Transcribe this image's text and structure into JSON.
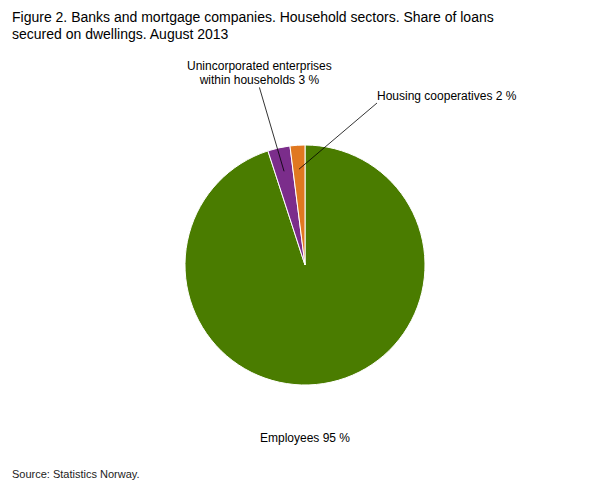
{
  "chart_data": {
    "type": "pie",
    "title": "Figure 2. Banks and mortgage companies. Household sectors. Share of loans\nsecured on dwellings. August 2013",
    "source": "Source: Statistics Norway.",
    "categories": [
      "Employees 95 %",
      "Unincorporated enterprises\nwithin households 3 %",
      "Housing cooperatives 2 %"
    ],
    "values": [
      95,
      3,
      2
    ],
    "colors": [
      "#4a7c00",
      "#7b2d8b",
      "#e07820"
    ]
  }
}
